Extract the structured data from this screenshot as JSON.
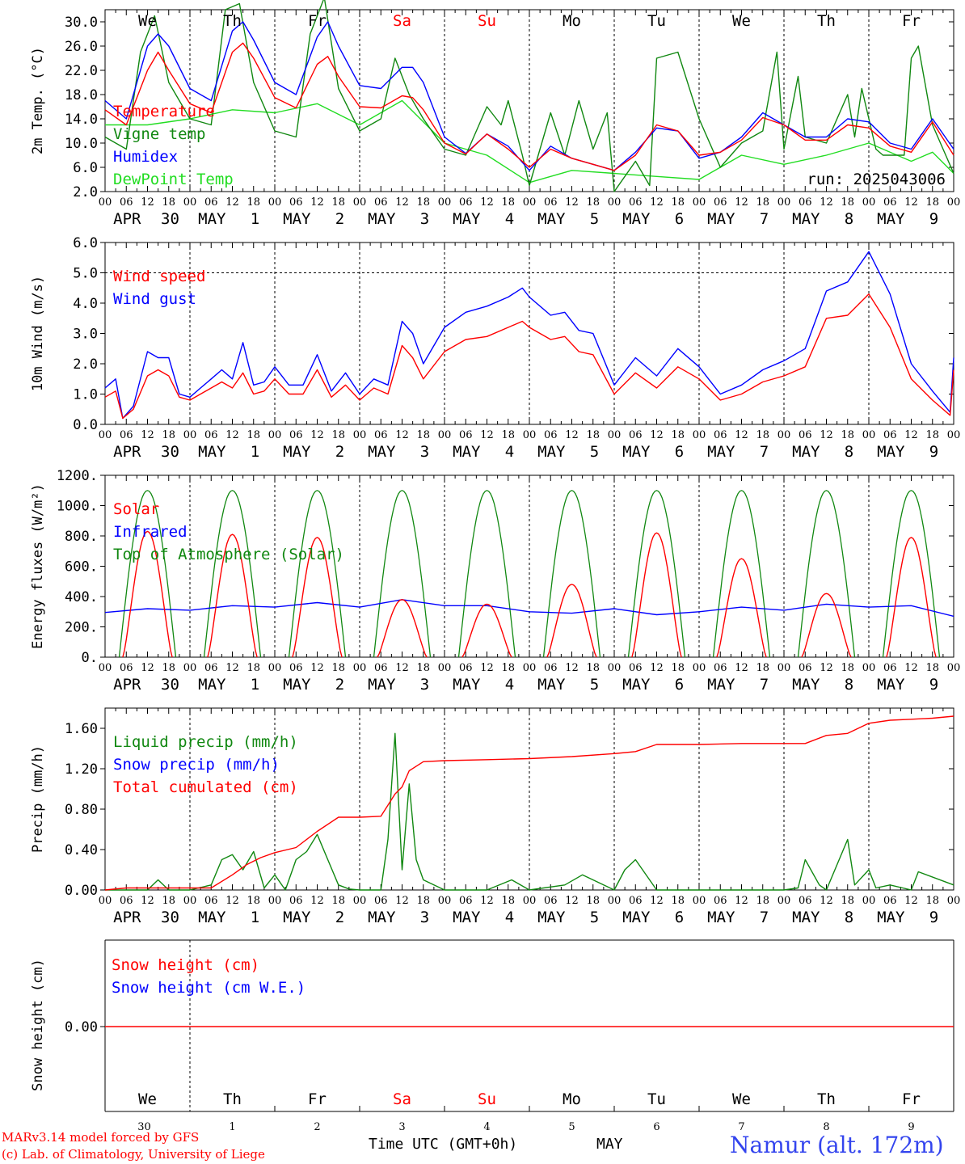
{
  "footer": {
    "model_line1": "MARv3.14 model forced by GFS",
    "model_line2": "(c) Lab. of Climatology, University of Liege",
    "time_label": "Time UTC (GMT+0h)",
    "month_label": "MAY",
    "station": "Namur (alt. 172m)"
  },
  "colors": {
    "red": "#ff0000",
    "green": "#118811",
    "blue": "#0000ff",
    "lightgreen": "#22dd22",
    "axis": "#000000",
    "weekend": "#ff0000"
  },
  "days": {
    "weekday_labels": [
      "We",
      "Th",
      "Fr",
      "Sa",
      "Su",
      "Mo",
      "Tu",
      "We",
      "Th",
      "Fr"
    ],
    "weekend_flags": [
      false,
      false,
      false,
      true,
      true,
      false,
      false,
      false,
      false,
      false
    ],
    "month_labels": [
      "APR",
      "MAY",
      "MAY",
      "MAY",
      "MAY",
      "MAY",
      "MAY",
      "MAY",
      "MAY",
      "MAY"
    ],
    "date_labels": [
      "30",
      "1",
      "2",
      "3",
      "4",
      "5",
      "6",
      "7",
      "8",
      "9"
    ],
    "hour_ticks": [
      "00",
      "06",
      "12",
      "18"
    ],
    "end_hour_label": "00"
  },
  "chart_data": [
    {
      "type": "line",
      "ylabel": "2m Temp. (°C)",
      "ylim": [
        2,
        32
      ],
      "yticks": [
        "2.0",
        "6.0",
        "10.0",
        "14.0",
        "18.0",
        "22.0",
        "26.0",
        "30.0"
      ],
      "ytick_values": [
        2,
        6,
        10,
        14,
        18,
        22,
        26,
        30
      ],
      "x_unit": "hours since 2025-04-30 00 UTC",
      "x_range": [
        0,
        240
      ],
      "run_label": "run: 2025043006",
      "series": [
        {
          "name": "Temperature",
          "color": "#ff0000",
          "x": [
            0,
            6,
            12,
            15,
            18,
            24,
            30,
            36,
            39,
            42,
            48,
            54,
            60,
            63,
            66,
            72,
            78,
            84,
            87,
            90,
            96,
            102,
            108,
            114,
            120,
            126,
            132,
            138,
            144,
            150,
            156,
            162,
            168,
            174,
            180,
            186,
            192,
            198,
            204,
            210,
            216,
            222,
            228,
            234,
            240
          ],
          "values": [
            15.5,
            13,
            22,
            25,
            22,
            16.5,
            15,
            25,
            26.5,
            24,
            17.5,
            15.8,
            23,
            24.3,
            21,
            16,
            15.8,
            17.8,
            17.5,
            15.5,
            10,
            8.2,
            11.5,
            9,
            6,
            9,
            7.5,
            6.5,
            5.5,
            8,
            13,
            12,
            8,
            8.5,
            10.5,
            14.2,
            13,
            10.5,
            10.5,
            13,
            12.5,
            9.5,
            8.5,
            13.5,
            8
          ]
        },
        {
          "name": "Vigne temp",
          "color": "#118811",
          "x": [
            0,
            6,
            10,
            14,
            18,
            24,
            30,
            34,
            38,
            42,
            48,
            54,
            58,
            62,
            66,
            72,
            78,
            82,
            86,
            90,
            96,
            102,
            108,
            112,
            114,
            118,
            120,
            126,
            130,
            134,
            138,
            142,
            144,
            150,
            154,
            156,
            162,
            168,
            174,
            180,
            186,
            190,
            192,
            196,
            198,
            204,
            210,
            212,
            214,
            218,
            220,
            226,
            228,
            230,
            234,
            240
          ],
          "values": [
            11,
            9,
            25,
            31,
            20,
            14,
            13,
            32,
            33,
            20,
            12,
            11,
            28,
            34,
            19,
            12,
            14,
            24,
            18,
            14,
            9,
            8,
            16,
            13,
            17,
            8,
            3,
            15,
            8,
            17,
            9,
            15,
            2,
            7,
            3,
            24,
            25,
            14,
            6,
            10,
            12,
            25,
            9,
            21,
            11,
            10,
            18,
            11,
            19,
            9,
            8,
            8,
            24,
            26,
            13,
            5
          ]
        },
        {
          "name": "Humidex",
          "color": "#0000ff",
          "x": [
            0,
            6,
            12,
            15,
            18,
            24,
            30,
            36,
            39,
            42,
            48,
            54,
            60,
            63,
            66,
            72,
            78,
            84,
            87,
            90,
            96,
            102,
            108,
            114,
            120,
            126,
            132,
            138,
            144,
            150,
            156,
            162,
            168,
            174,
            180,
            186,
            192,
            198,
            204,
            210,
            216,
            222,
            228,
            234,
            240
          ],
          "values": [
            17,
            14,
            26,
            28,
            26,
            19,
            17,
            28.5,
            30,
            27,
            20,
            18,
            27.5,
            30,
            26,
            19.5,
            19,
            22.5,
            22.5,
            20,
            11,
            8.3,
            11.5,
            9.5,
            5.5,
            9.5,
            7.5,
            6.5,
            5.5,
            8.5,
            12.5,
            12,
            7.5,
            8.5,
            11,
            15,
            13,
            11,
            11,
            14,
            13.5,
            10,
            9,
            14,
            9
          ]
        },
        {
          "name": "DewPoint Temp",
          "color": "#22dd22",
          "x": [
            0,
            12,
            24,
            36,
            48,
            60,
            72,
            84,
            96,
            108,
            120,
            132,
            144,
            156,
            168,
            180,
            192,
            204,
            216,
            228,
            234,
            240
          ],
          "values": [
            13,
            13,
            14,
            15.5,
            15,
            16.5,
            13,
            17,
            10,
            8,
            3.5,
            5.5,
            5,
            4.5,
            4,
            8,
            6.5,
            8,
            10,
            7,
            8.5,
            5
          ]
        }
      ]
    },
    {
      "type": "line",
      "ylabel": "10m Wind (m/s)",
      "ylim": [
        0,
        6
      ],
      "yticks": [
        "0.0",
        "1.0",
        "2.0",
        "3.0",
        "4.0",
        "5.0",
        "6.0"
      ],
      "ytick_values": [
        0,
        1,
        2,
        3,
        4,
        5,
        6
      ],
      "ref_line": 5,
      "x_range": [
        0,
        240
      ],
      "series": [
        {
          "name": "Wind speed",
          "color": "#ff0000",
          "x": [
            0,
            3,
            5,
            8,
            12,
            15,
            18,
            21,
            24,
            27,
            30,
            33,
            36,
            39,
            42,
            45,
            48,
            52,
            56,
            60,
            64,
            68,
            72,
            76,
            80,
            84,
            87,
            90,
            96,
            102,
            108,
            114,
            118,
            120,
            126,
            130,
            134,
            138,
            144,
            150,
            156,
            162,
            168,
            174,
            180,
            186,
            192,
            198,
            204,
            210,
            216,
            222,
            228,
            234,
            239,
            240
          ],
          "values": [
            0.9,
            1.1,
            0.2,
            0.5,
            1.6,
            1.8,
            1.6,
            0.9,
            0.8,
            1.0,
            1.2,
            1.4,
            1.2,
            1.7,
            1.0,
            1.1,
            1.5,
            1.0,
            1.0,
            1.8,
            0.9,
            1.3,
            0.8,
            1.2,
            1.0,
            2.6,
            2.2,
            1.5,
            2.4,
            2.8,
            2.9,
            3.2,
            3.4,
            3.2,
            2.8,
            2.9,
            2.4,
            2.3,
            1.0,
            1.7,
            1.2,
            1.9,
            1.5,
            0.8,
            1.0,
            1.4,
            1.6,
            1.9,
            3.5,
            3.6,
            4.3,
            3.2,
            1.5,
            0.8,
            0.3,
            1.8
          ]
        },
        {
          "name": "Wind gust",
          "color": "#0000ff",
          "x": [
            0,
            3,
            5,
            8,
            12,
            15,
            18,
            21,
            24,
            27,
            30,
            33,
            36,
            39,
            42,
            45,
            48,
            52,
            56,
            60,
            64,
            68,
            72,
            76,
            80,
            84,
            87,
            90,
            96,
            102,
            108,
            114,
            118,
            120,
            126,
            130,
            134,
            138,
            144,
            150,
            156,
            162,
            168,
            174,
            180,
            186,
            192,
            198,
            204,
            210,
            216,
            222,
            228,
            234,
            239,
            240
          ],
          "values": [
            1.2,
            1.5,
            0.2,
            0.6,
            2.4,
            2.2,
            2.2,
            1.0,
            0.9,
            1.2,
            1.5,
            1.8,
            1.5,
            2.7,
            1.3,
            1.4,
            1.9,
            1.3,
            1.3,
            2.3,
            1.1,
            1.7,
            1.0,
            1.5,
            1.3,
            3.4,
            3.0,
            2.0,
            3.2,
            3.7,
            3.9,
            4.2,
            4.5,
            4.2,
            3.6,
            3.7,
            3.1,
            3.0,
            1.3,
            2.2,
            1.6,
            2.5,
            1.9,
            1.0,
            1.3,
            1.8,
            2.1,
            2.5,
            4.4,
            4.7,
            5.7,
            4.3,
            2.0,
            1.1,
            0.4,
            2.2
          ]
        }
      ]
    },
    {
      "type": "line",
      "ylabel": "Energy fluxes (W/m²)",
      "ylim": [
        0,
        1200
      ],
      "yticks": [
        "0.",
        "200.",
        "400.",
        "600.",
        "800.",
        "1000.",
        "1200."
      ],
      "ytick_values": [
        0,
        200,
        400,
        600,
        800,
        1000,
        1200
      ],
      "x_range": [
        0,
        240
      ],
      "series": [
        {
          "name": "Solar",
          "color": "#ff0000",
          "daily_peaks": [
            830,
            810,
            790,
            380,
            350,
            480,
            820,
            650,
            420,
            790
          ]
        },
        {
          "name": "Infrared",
          "color": "#0000ff",
          "x": [
            0,
            12,
            24,
            36,
            48,
            60,
            72,
            84,
            96,
            108,
            120,
            132,
            144,
            156,
            168,
            180,
            192,
            204,
            216,
            228,
            240
          ],
          "values": [
            295,
            320,
            310,
            340,
            330,
            360,
            330,
            380,
            340,
            340,
            300,
            290,
            320,
            280,
            300,
            330,
            310,
            350,
            330,
            340,
            270
          ]
        },
        {
          "name": "Top of Atmosphere (Solar)",
          "color": "#118811",
          "peak": 1100,
          "sunrise_hour": 4,
          "sunset_hour": 20
        }
      ]
    },
    {
      "type": "line",
      "ylabel": "Precip (mm/h)",
      "ylim": [
        0,
        1.8
      ],
      "yticks": [
        "0.00",
        "0.40",
        "0.80",
        "1.20",
        "1.60"
      ],
      "ytick_values": [
        0,
        0.4,
        0.8,
        1.2,
        1.6
      ],
      "x_range": [
        0,
        240
      ],
      "series": [
        {
          "name": "Liquid precip (mm/h)",
          "color": "#118811",
          "x": [
            0,
            12,
            15,
            18,
            24,
            30,
            33,
            36,
            39,
            42,
            45,
            48,
            51,
            54,
            57,
            60,
            63,
            66,
            69,
            72,
            78,
            80,
            82,
            84,
            86,
            88,
            90,
            96,
            108,
            115,
            120,
            130,
            135,
            144,
            147,
            150,
            156,
            168,
            180,
            192,
            196,
            198,
            202,
            204,
            210,
            212,
            216,
            218,
            222,
            228,
            230,
            240
          ],
          "values": [
            0,
            0,
            0.1,
            0,
            0,
            0.05,
            0.3,
            0.35,
            0.2,
            0.38,
            0.02,
            0.15,
            0,
            0.3,
            0.38,
            0.55,
            0.3,
            0.05,
            0.01,
            0,
            0,
            0.5,
            1.55,
            0.2,
            1.05,
            0.3,
            0.1,
            0,
            0,
            0.1,
            0,
            0.05,
            0.15,
            0,
            0.2,
            0.3,
            0,
            0,
            0,
            0,
            0.02,
            0.3,
            0.05,
            0,
            0.5,
            0.05,
            0.2,
            0.02,
            0.05,
            0,
            0.18,
            0.05
          ]
        },
        {
          "name": "Snow precip (mm/h)",
          "color": "#0000ff",
          "x": [],
          "values": []
        },
        {
          "name": "Total cumulated (cm)",
          "color": "#ff0000",
          "x": [
            0,
            6,
            12,
            18,
            24,
            30,
            36,
            40,
            44,
            48,
            54,
            60,
            66,
            72,
            78,
            82,
            84,
            86,
            90,
            96,
            108,
            120,
            132,
            144,
            150,
            156,
            168,
            180,
            198,
            204,
            210,
            216,
            222,
            228,
            234,
            240
          ],
          "values": [
            0,
            0.02,
            0.02,
            0.02,
            0.02,
            0.02,
            0.15,
            0.25,
            0.32,
            0.37,
            0.42,
            0.58,
            0.72,
            0.72,
            0.73,
            0.95,
            1.02,
            1.18,
            1.27,
            1.28,
            1.29,
            1.3,
            1.32,
            1.35,
            1.37,
            1.44,
            1.44,
            1.45,
            1.45,
            1.53,
            1.55,
            1.65,
            1.68,
            1.69,
            1.7,
            1.72
          ]
        }
      ]
    },
    {
      "type": "line",
      "ylabel": "Snow height (cm)",
      "yticks": [
        "0.00"
      ],
      "ytick_values": [
        0
      ],
      "x_range": [
        0,
        240
      ],
      "series": [
        {
          "name": "Snow height (cm)",
          "color": "#ff0000",
          "x": [
            0,
            240
          ],
          "values": [
            0,
            0
          ]
        },
        {
          "name": "Snow height (cm W.E.)",
          "color": "#0000ff",
          "x": [],
          "values": []
        }
      ]
    }
  ]
}
